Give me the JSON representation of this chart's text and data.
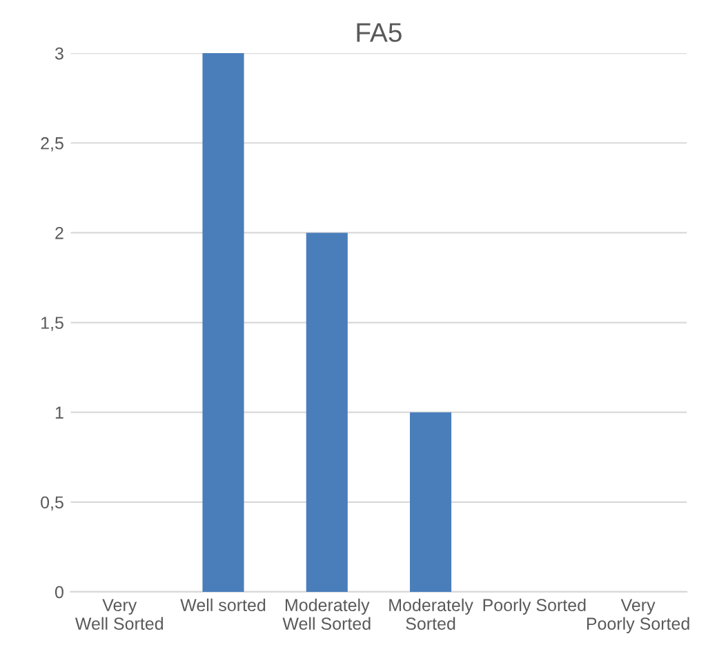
{
  "chart_data": {
    "type": "bar",
    "title": "FA5",
    "categories": [
      "Very Well Sorted",
      "Well sorted",
      "Moderately Well Sorted",
      "Moderately Sorted",
      "Poorly Sorted",
      "Very Poorly Sorted"
    ],
    "values": [
      0,
      3,
      2,
      1,
      0,
      0
    ],
    "color": "#4a7ebb",
    "ylim": [
      0,
      3
    ],
    "yticks": [
      0,
      {
        "value": 0.5,
        "label": "0,5"
      },
      1,
      {
        "value": 1.5,
        "label": "1,5"
      },
      2,
      {
        "value": 2.5,
        "label": "2,5"
      },
      3
    ],
    "grid": "y",
    "legend": false
  }
}
